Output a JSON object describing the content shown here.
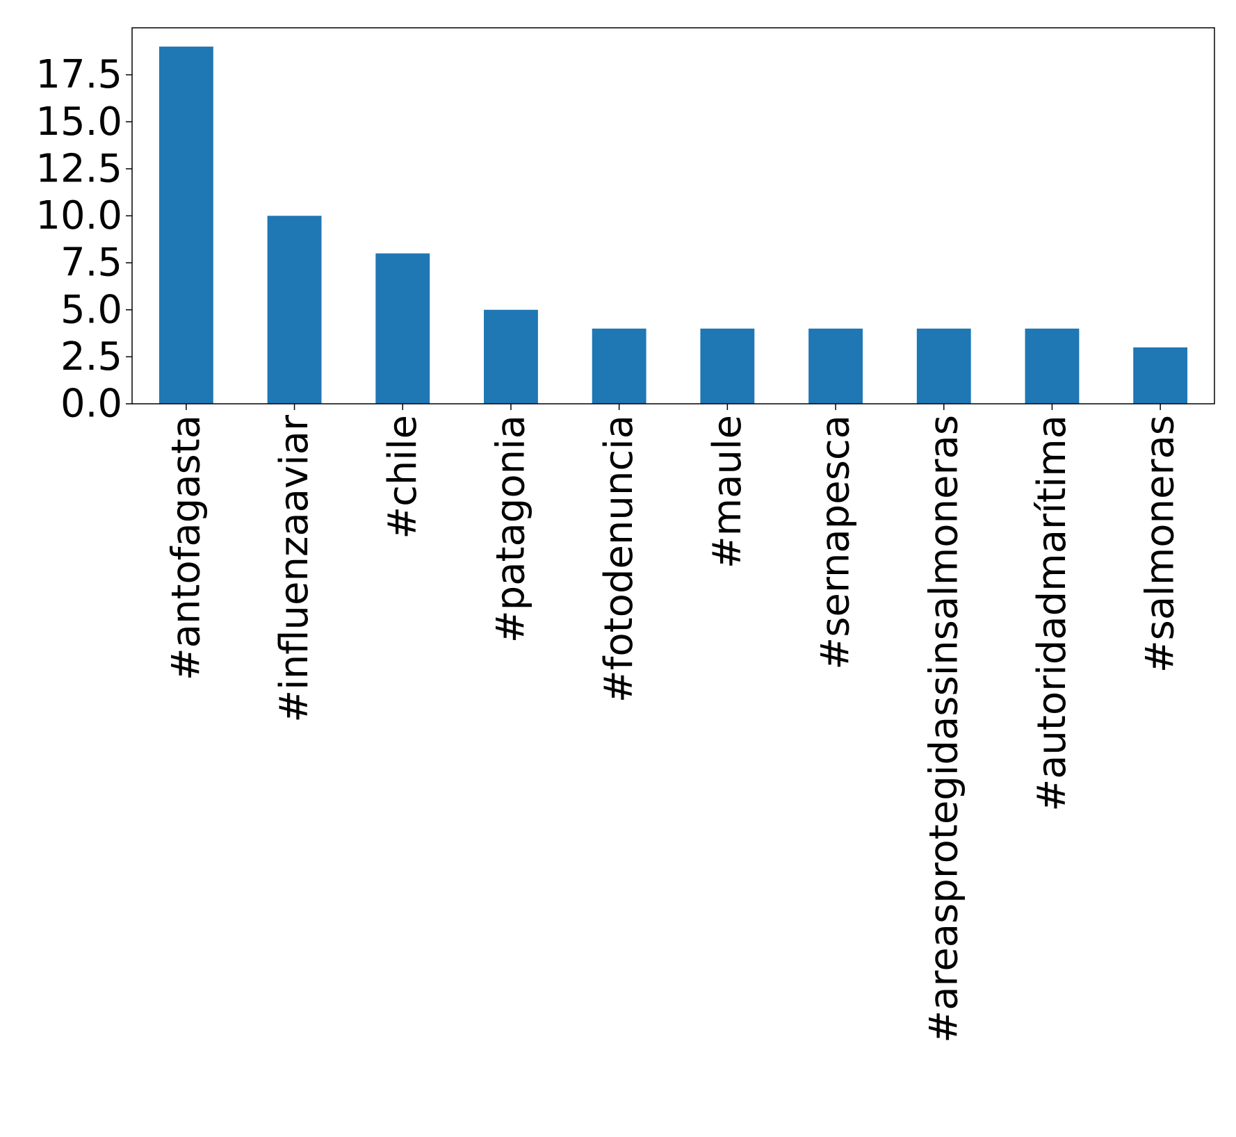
{
  "chart_data": {
    "type": "bar",
    "title": "",
    "xlabel": "",
    "ylabel": "",
    "categories": [
      "#antofagasta",
      "#influenzaaviar",
      "#chile",
      "#patagonia",
      "#fotodenuncia",
      "#maule",
      "#sernapesca",
      "#areasprotegidassinsalmoneras",
      "#autoridadmarítima",
      "#salmoneras"
    ],
    "values": [
      19,
      10,
      8,
      5,
      4,
      4,
      4,
      4,
      4,
      3
    ],
    "ylim": [
      0,
      20
    ],
    "yticks": [
      0.0,
      2.5,
      5.0,
      7.5,
      10.0,
      12.5,
      15.0,
      17.5
    ],
    "ytick_labels": [
      "0.0",
      "2.5",
      "5.0",
      "7.5",
      "10.0",
      "12.5",
      "15.0",
      "17.5"
    ],
    "bar_color": "#1f77b4",
    "grid": false,
    "legend": false
  }
}
